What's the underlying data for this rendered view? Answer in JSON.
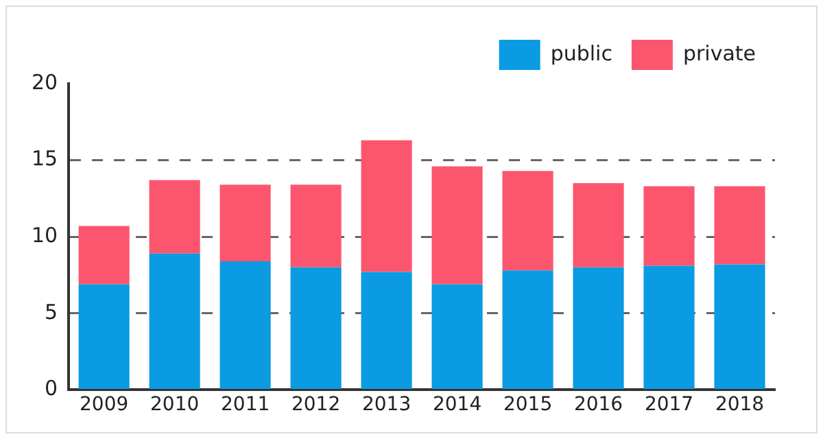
{
  "chart_data": {
    "type": "bar",
    "stacked": true,
    "categories": [
      "2009",
      "2010",
      "2011",
      "2012",
      "2013",
      "2014",
      "2015",
      "2016",
      "2017",
      "2018"
    ],
    "series": [
      {
        "name": "public",
        "color": "#0a9be3",
        "values": [
          6.9,
          8.9,
          8.4,
          8.0,
          7.7,
          6.9,
          7.8,
          8.0,
          8.1,
          8.2
        ]
      },
      {
        "name": "private",
        "color": "#fc566e",
        "values": [
          3.8,
          4.8,
          5.0,
          5.4,
          8.6,
          7.7,
          6.5,
          5.5,
          5.2,
          5.1
        ]
      }
    ],
    "ylim": [
      0,
      20
    ],
    "yticks": [
      0,
      5,
      10,
      15,
      20
    ],
    "grid": "y",
    "legend": "top right"
  }
}
